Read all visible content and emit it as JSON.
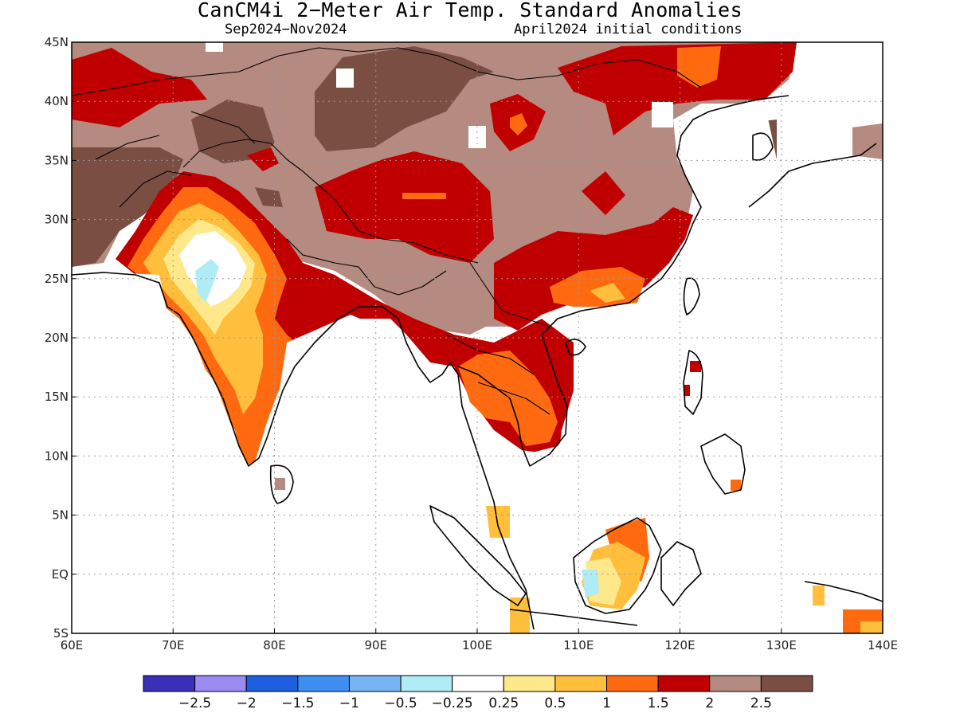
{
  "title": "CanCM4i 2−Meter Air Temp. Standard Anomalies",
  "period": "Sep2024−Nov2024",
  "init": "April2024 initial conditions",
  "colors": {
    "c_m25": "#3a2fb8",
    "c_m2": "#9a8af2",
    "c_m15": "#1e5fe0",
    "c_m1": "#3e8ff0",
    "c_m05": "#78b4f4",
    "c_m025": "#b0ecf6",
    "c_0": "#ffffff",
    "c_025": "#ffe88a",
    "c_05": "#ffbe3c",
    "c_1": "#ff6a10",
    "c_15": "#c00000",
    "c_2": "#b58a80",
    "c_25": "#7b4e44",
    "coast": "#000000"
  },
  "lon_ticks": [
    "60E",
    "70E",
    "80E",
    "90E",
    "100E",
    "110E",
    "120E",
    "130E",
    "140E"
  ],
  "lat_ticks": [
    "45N",
    "40N",
    "35N",
    "30N",
    "25N",
    "20N",
    "15N",
    "10N",
    "5N",
    "EQ",
    "5S"
  ],
  "colorbar": {
    "bins": [
      "c_m25",
      "c_m2",
      "c_m15",
      "c_m1",
      "c_m05",
      "c_m025",
      "c_0",
      "c_025",
      "c_05",
      "c_1",
      "c_15",
      "c_2",
      "c_25"
    ],
    "labels": [
      "−2.5",
      "−2",
      "−1.5",
      "−1",
      "−0.5",
      "−0.25",
      "0.25",
      "0.5",
      "1",
      "1.5",
      "2",
      "2.5"
    ]
  }
}
